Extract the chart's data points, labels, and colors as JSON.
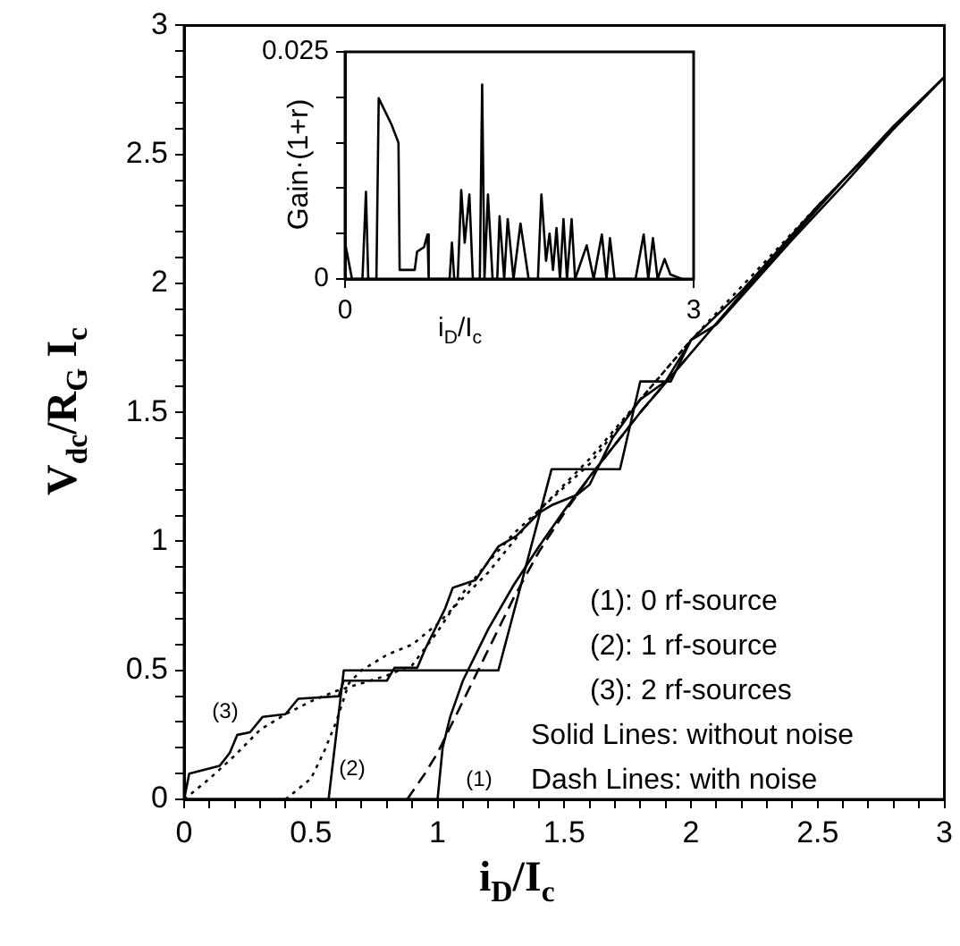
{
  "chart_data": [
    {
      "type": "line",
      "xlabel": "i$_{D}$/I$_{c}$",
      "ylabel": "V$_{dc}$/R$_{G}$ I$_{c}$",
      "xlim": [
        0,
        3
      ],
      "ylim": [
        0,
        3
      ],
      "xticks": [
        0,
        {
          "value": 0.1,
          "label": null
        },
        {
          "value": 0.2,
          "label": null
        },
        {
          "value": 0.3,
          "label": null
        },
        {
          "value": 0.4,
          "label": null
        },
        0.5,
        {
          "value": 0.6,
          "label": null
        },
        {
          "value": 0.7,
          "label": null
        },
        {
          "value": 0.8,
          "label": null
        },
        {
          "value": 0.9,
          "label": null
        },
        1,
        {
          "value": 1.1,
          "label": null
        },
        {
          "value": 1.2,
          "label": null
        },
        {
          "value": 1.3,
          "label": null
        },
        {
          "value": 1.4,
          "label": null
        },
        1.5,
        {
          "value": 1.6,
          "label": null
        },
        {
          "value": 1.7,
          "label": null
        },
        {
          "value": 1.8,
          "label": null
        },
        {
          "value": 1.9,
          "label": null
        },
        2,
        {
          "value": 2.1,
          "label": null
        },
        {
          "value": 2.2,
          "label": null
        },
        {
          "value": 2.3,
          "label": null
        },
        {
          "value": 2.4,
          "label": null
        },
        2.5,
        {
          "value": 2.6,
          "label": null
        },
        {
          "value": 2.7,
          "label": null
        },
        {
          "value": 2.8,
          "label": null
        },
        {
          "value": 2.9,
          "label": null
        },
        3
      ],
      "yticks": [
        0,
        {
          "value": 0.1,
          "label": null
        },
        {
          "value": 0.2,
          "label": null
        },
        {
          "value": 0.3,
          "label": null
        },
        {
          "value": 0.4,
          "label": null
        },
        0.5,
        {
          "value": 0.6,
          "label": null
        },
        {
          "value": 0.7,
          "label": null
        },
        {
          "value": 0.8,
          "label": null
        },
        {
          "value": 0.9,
          "label": null
        },
        1,
        {
          "value": 1.1,
          "label": null
        },
        {
          "value": 1.2,
          "label": null
        },
        {
          "value": 1.3,
          "label": null
        },
        {
          "value": 1.4,
          "label": null
        },
        1.5,
        {
          "value": 1.6,
          "label": null
        },
        {
          "value": 1.7,
          "label": null
        },
        {
          "value": 1.8,
          "label": null
        },
        {
          "value": 1.9,
          "label": null
        },
        2,
        {
          "value": 2.1,
          "label": null
        },
        {
          "value": 2.2,
          "label": null
        },
        {
          "value": 2.3,
          "label": null
        },
        {
          "value": 2.4,
          "label": null
        },
        2.5,
        {
          "value": 2.6,
          "label": null
        },
        {
          "value": 2.7,
          "label": null
        },
        {
          "value": 2.8,
          "label": null
        },
        {
          "value": 2.9,
          "label": null
        },
        3
      ],
      "series": [
        {
          "name": "(1)",
          "color": "#000000",
          "line_style": "solid",
          "x": [
            0,
            1,
            1.02,
            1.05,
            1.1,
            1.2,
            1.3,
            1.4,
            1.5,
            1.6,
            1.8,
            2,
            2.2,
            2.4,
            2.6,
            2.8,
            3
          ],
          "values": [
            0,
            0,
            0.2,
            0.32,
            0.46,
            0.66,
            0.83,
            0.98,
            1.12,
            1.25,
            1.5,
            1.73,
            1.96,
            2.18,
            2.4,
            2.61,
            2.8
          ]
        },
        {
          "color": "#000000",
          "line_style": "dashed",
          "x": [
            0.88,
            0.95,
            1.0,
            1.05,
            1.1,
            1.2,
            1.3,
            1.4,
            1.5,
            1.6,
            1.8,
            2
          ],
          "values": [
            0,
            0.1,
            0.18,
            0.28,
            0.38,
            0.58,
            0.78,
            0.96,
            1.11,
            1.25,
            1.5,
            1.73
          ]
        },
        {
          "name": "(2)",
          "color": "#000000",
          "line_style": "solid",
          "x": [
            0,
            0.57,
            0.63,
            1.24,
            1.45,
            1.72,
            1.8,
            1.92,
            2.0,
            2.2,
            2.5,
            2.8,
            3
          ],
          "values": [
            0,
            0,
            0.5,
            0.5,
            1.28,
            1.28,
            1.62,
            1.62,
            1.78,
            1.97,
            2.3,
            2.6,
            2.8
          ]
        },
        {
          "color": "#000000",
          "line_style": "dotted",
          "x": [
            0.4,
            0.5,
            0.55,
            0.6,
            0.65,
            0.7,
            0.8,
            0.9,
            1.0,
            1.1,
            1.2,
            1.3,
            1.4,
            1.5,
            1.6,
            1.8,
            2
          ],
          "values": [
            0,
            0.08,
            0.18,
            0.3,
            0.45,
            0.5,
            0.56,
            0.6,
            0.68,
            0.78,
            0.88,
            1.0,
            1.12,
            1.22,
            1.32,
            1.55,
            1.78
          ]
        },
        {
          "name": "(3)",
          "color": "#000000",
          "line_style": "solid",
          "x": [
            0,
            0.02,
            0.14,
            0.18,
            0.21,
            0.26,
            0.31,
            0.4,
            0.45,
            0.61,
            0.63,
            0.8,
            0.83,
            0.92,
            0.95,
            1.03,
            1.06,
            1.15,
            1.24,
            1.31,
            1.4,
            1.45,
            1.55,
            1.6,
            1.69,
            1.8,
            1.9,
            2.0,
            2.1,
            2.2,
            2.4,
            2.6,
            2.8,
            3
          ],
          "values": [
            0,
            0.1,
            0.13,
            0.18,
            0.25,
            0.26,
            0.32,
            0.33,
            0.39,
            0.4,
            0.46,
            0.46,
            0.51,
            0.51,
            0.58,
            0.74,
            0.82,
            0.85,
            0.98,
            1.02,
            1.11,
            1.14,
            1.18,
            1.22,
            1.4,
            1.55,
            1.62,
            1.78,
            1.84,
            1.95,
            2.17,
            2.38,
            2.6,
            2.8
          ]
        },
        {
          "color": "#000000",
          "line_style": "dotted",
          "x": [
            0,
            0.1,
            0.2,
            0.3,
            0.4,
            0.5,
            0.6,
            0.7,
            0.8,
            0.9,
            1.0,
            1.1,
            1.2,
            1.3,
            1.4,
            1.6,
            1.8,
            2,
            2.5,
            3
          ],
          "values": [
            0,
            0.08,
            0.17,
            0.27,
            0.33,
            0.38,
            0.42,
            0.45,
            0.48,
            0.52,
            0.65,
            0.8,
            0.92,
            1.03,
            1.12,
            1.3,
            1.55,
            1.78,
            2.3,
            2.8
          ]
        }
      ],
      "annotations": [
        "(1): 0 rf-source",
        "(2): 1 rf-source",
        "(3): 2 rf-sources",
        "Solid Lines: without noise",
        "Dash Lines: with noise"
      ]
    },
    {
      "type": "line",
      "xlabel": "i$_{D}$/I$_{c}$",
      "ylabel": "Gain·(1+r)",
      "xlim": [
        0,
        3
      ],
      "ylim": [
        0,
        0.025
      ],
      "xticks": [
        0,
        3
      ],
      "yticks": [
        0,
        {
          "value": 0.005,
          "label": null
        },
        {
          "value": 0.01,
          "label": null
        },
        {
          "value": 0.015,
          "label": null
        },
        {
          "value": 0.02,
          "label": null
        },
        0.025
      ],
      "series": [
        {
          "color": "#000000",
          "line_style": "solid",
          "x": [
            0,
            0.06,
            0.15,
            0.18,
            0.2,
            0.27,
            0.29,
            0.4,
            0.46,
            0.47,
            0.6,
            0.62,
            0.68,
            0.71,
            0.72,
            0.9,
            0.92,
            0.94,
            0.97,
            1.0,
            1.03,
            1.07,
            1.1,
            1.16,
            1.18,
            1.2,
            1.23,
            1.27,
            1.31,
            1.33,
            1.37,
            1.4,
            1.45,
            1.51,
            1.58,
            1.66,
            1.69,
            1.73,
            1.76,
            1.79,
            1.82,
            1.85,
            1.88,
            1.91,
            1.95,
            1.98,
            2.08,
            2.14,
            2.21,
            2.25,
            2.28,
            2.32,
            2.5,
            2.57,
            2.61,
            2.65,
            2.69,
            2.75,
            2.8,
            2.9
          ],
          "values": [
            0.004,
            0,
            0,
            0.0096,
            0,
            0,
            0.0199,
            0.017,
            0.015,
            0.001,
            0.001,
            0.003,
            0.0035,
            0.0049,
            0,
            0,
            0.004,
            0,
            0,
            0.0098,
            0.004,
            0.0093,
            0,
            0,
            0.0214,
            0,
            0.0093,
            0,
            0,
            0.0069,
            0,
            0.0066,
            0,
            0.0061,
            0,
            0,
            0.0093,
            0.002,
            0.005,
            0.001,
            0.0056,
            0,
            0.0066,
            0,
            0.0066,
            0,
            0.0037,
            0,
            0.0049,
            0,
            0.0045,
            0,
            0,
            0.0049,
            0,
            0.0045,
            0,
            0.0022,
            0.0005,
            0
          ]
        }
      ]
    }
  ]
}
